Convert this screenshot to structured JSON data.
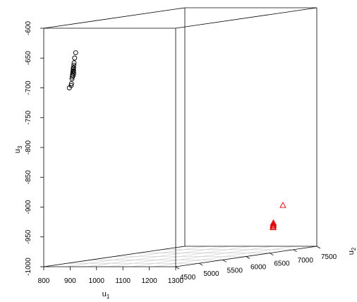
{
  "chart_data": {
    "type": "scatter3d",
    "axes": {
      "u1": {
        "label": "u",
        "sub": "1",
        "range": [
          800,
          1300
        ],
        "ticks": [
          800,
          900,
          1000,
          1100,
          1200,
          1300
        ]
      },
      "u2": {
        "label": "u",
        "sub": "2",
        "range": [
          4500,
          7500
        ],
        "ticks": [
          4500,
          5000,
          5500,
          6000,
          6500,
          7000,
          7500
        ]
      },
      "u3": {
        "label": "u",
        "sub": "3",
        "range": [
          -1000,
          -600
        ],
        "ticks": [
          -600,
          -650,
          -700,
          -750,
          -800,
          -850,
          -900,
          -950,
          -1000
        ]
      }
    },
    "grid": true,
    "series": [
      {
        "marker": "circle",
        "color": "#000000",
        "points": [
          [
            921,
            4500,
            -641
          ],
          [
            917,
            4500,
            -650
          ],
          [
            915,
            4500,
            -658
          ],
          [
            914,
            4500,
            -662
          ],
          [
            913,
            4500,
            -666
          ],
          [
            912,
            4500,
            -669
          ],
          [
            911,
            4500,
            -672
          ],
          [
            910,
            4500,
            -675
          ],
          [
            909,
            4500,
            -678
          ],
          [
            908,
            4500,
            -682
          ],
          [
            907,
            4500,
            -685
          ],
          [
            911,
            4500,
            -680
          ],
          [
            914,
            4500,
            -676
          ],
          [
            913,
            4500,
            -671
          ],
          [
            912,
            4500,
            -667
          ],
          [
            905,
            4500,
            -693
          ],
          [
            904,
            4500,
            -696
          ],
          [
            897,
            4500,
            -700
          ]
        ]
      },
      {
        "marker": "triangle",
        "color": "#e00000",
        "points": [
          [
            1300,
            6780,
            -923
          ],
          [
            1300,
            6575,
            -952
          ],
          [
            1300,
            6572,
            -955
          ],
          [
            1300,
            6570,
            -957
          ],
          [
            1300,
            6578,
            -950
          ],
          [
            1300,
            6574,
            -958
          ],
          [
            1300,
            6576,
            -954
          ]
        ]
      }
    ]
  }
}
